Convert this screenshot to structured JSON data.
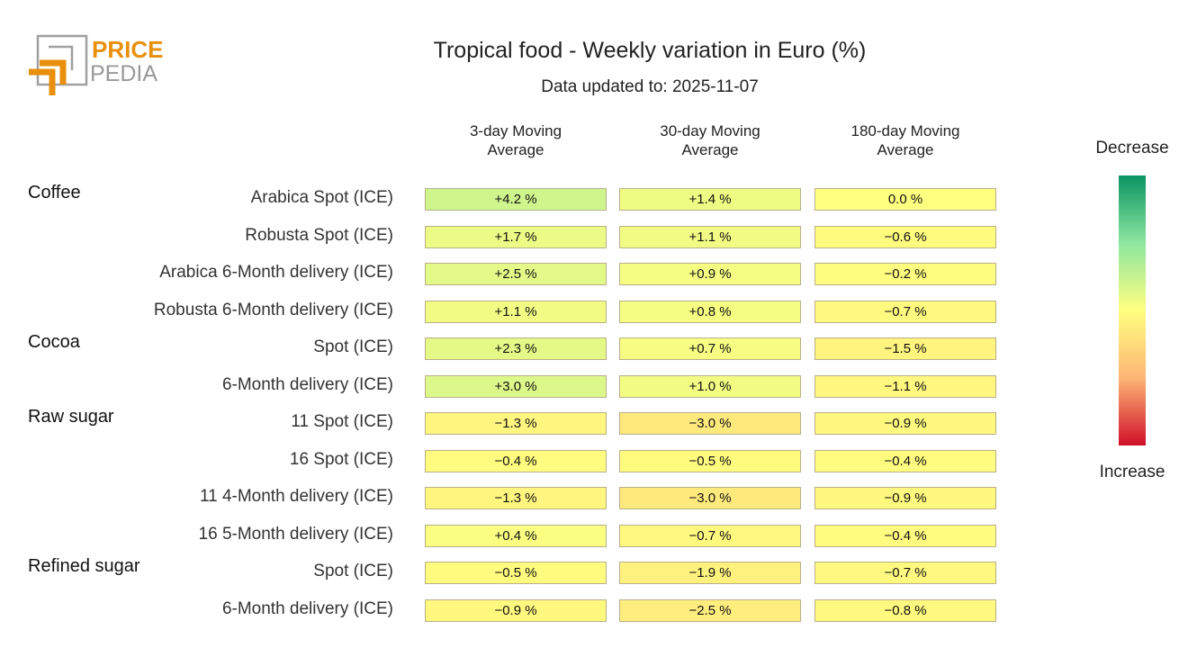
{
  "logo": {
    "text1": "PRICE",
    "text2": "PEDIA",
    "accent": "#e8900c"
  },
  "chart_data": {
    "type": "heatmap",
    "title": "Tropical food - Weekly variation in Euro (%)",
    "subtitle": "Data updated to: 2025-11-07",
    "columns": [
      "3-day Moving\nAverage",
      "30-day Moving\nAverage",
      "180-day Moving\nAverage"
    ],
    "rows": [
      {
        "group": "Coffee",
        "label": "Arabica Spot (ICE)",
        "values": [
          4.2,
          1.4,
          0.0
        ]
      },
      {
        "group": "",
        "label": "Robusta Spot (ICE)",
        "values": [
          1.7,
          1.1,
          -0.6
        ]
      },
      {
        "group": "",
        "label": "Arabica 6-Month delivery (ICE)",
        "values": [
          2.5,
          0.9,
          -0.2
        ]
      },
      {
        "group": "",
        "label": "Robusta 6-Month delivery (ICE)",
        "values": [
          1.1,
          0.8,
          -0.7
        ]
      },
      {
        "group": "Cocoa",
        "label": "Spot (ICE)",
        "values": [
          2.3,
          0.7,
          -1.5
        ]
      },
      {
        "group": "",
        "label": "6-Month delivery (ICE)",
        "values": [
          3.0,
          1.0,
          -1.1
        ]
      },
      {
        "group": "Raw sugar",
        "label": "11 Spot (ICE)",
        "values": [
          -1.3,
          -3.0,
          -0.9
        ]
      },
      {
        "group": "",
        "label": "16 Spot (ICE)",
        "values": [
          -0.4,
          -0.5,
          -0.4
        ]
      },
      {
        "group": "",
        "label": "11 4-Month delivery (ICE)",
        "values": [
          -1.3,
          -3.0,
          -0.9
        ]
      },
      {
        "group": "",
        "label": "16 5-Month delivery (ICE)",
        "values": [
          0.4,
          -0.7,
          -0.4
        ]
      },
      {
        "group": "Refined sugar",
        "label": "Spot (ICE)",
        "values": [
          -0.5,
          -1.9,
          -0.7
        ]
      },
      {
        "group": "",
        "label": "6-Month delivery (ICE)",
        "values": [
          -0.9,
          -2.5,
          -0.8
        ]
      }
    ],
    "colorscale": {
      "colors": [
        "#0a9463",
        "#8de6a0",
        "#ffff80",
        "#fdb575",
        "#d0102a"
      ],
      "top_label": "Decrease",
      "bottom_label": "Increase"
    }
  }
}
